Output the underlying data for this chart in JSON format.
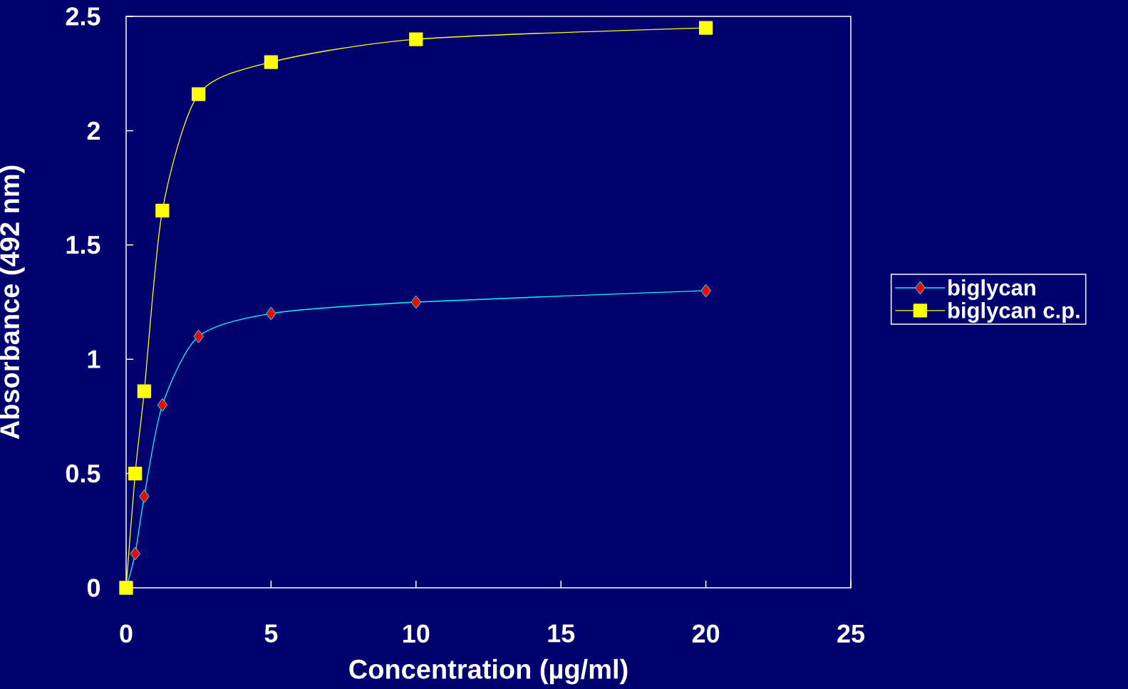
{
  "chart_data": {
    "type": "line",
    "xlabel": "Concentration (µg/ml)",
    "ylabel": "Absorbance (492 nm)",
    "x": [
      0,
      0.3125,
      0.625,
      1.25,
      2.5,
      5,
      10,
      20
    ],
    "series": [
      {
        "name": "biglycan",
        "color": "#00ffff",
        "marker": "diamond",
        "values": [
          0,
          0.15,
          0.4,
          0.8,
          1.1,
          1.2,
          1.25,
          1.3
        ]
      },
      {
        "name": "biglycan c.p.",
        "color": "#ffff00",
        "marker": "square",
        "values": [
          0,
          0.5,
          0.86,
          1.65,
          2.16,
          2.3,
          2.4,
          2.45
        ]
      }
    ],
    "xlim": [
      0,
      25
    ],
    "ylim": [
      0,
      2.5
    ],
    "xticks": [
      0,
      5,
      10,
      15,
      20,
      25
    ],
    "yticks": [
      0,
      0.5,
      1,
      1.5,
      2,
      2.5
    ],
    "legend": "right",
    "grid": false
  }
}
